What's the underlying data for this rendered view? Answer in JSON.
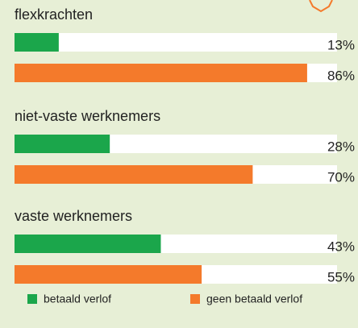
{
  "chart_data": {
    "type": "bar",
    "orientation": "horizontal",
    "categories": [
      "flexkrachten",
      "niet-vaste werknemers",
      "vaste werknemers"
    ],
    "series": [
      {
        "name": "betaald verlof",
        "color": "#1ba64b",
        "values": [
          13,
          28,
          43
        ],
        "value_labels": [
          "13%",
          "28%",
          "43%"
        ]
      },
      {
        "name": "geen betaald verlof",
        "color": "#f47a2b",
        "values": [
          86,
          70,
          55
        ],
        "value_labels": [
          "86%",
          "70%",
          "55%"
        ]
      }
    ],
    "xlim": [
      0,
      100
    ],
    "legend": "bottom"
  }
}
